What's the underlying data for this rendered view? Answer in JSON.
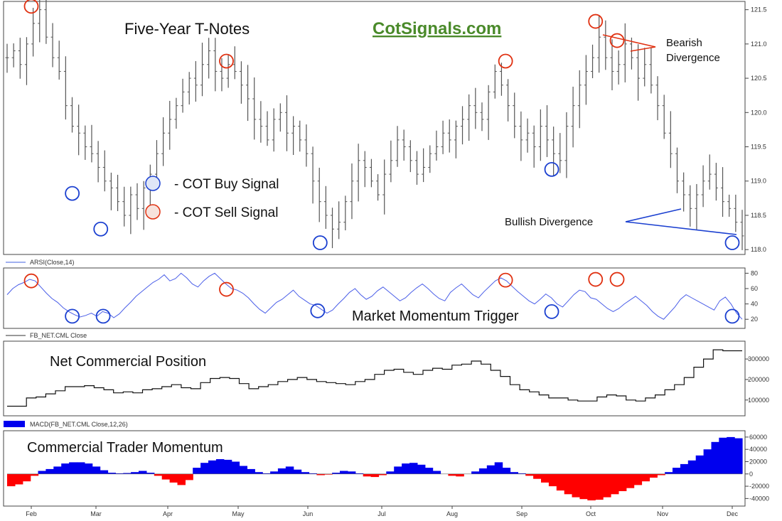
{
  "chart_data": [
    {
      "type": "ohlc",
      "title": "Five-Year T-Notes",
      "watermark": "CotSignals.com",
      "ylim": [
        117.95,
        121.6
      ],
      "y_ticks": [
        "121.5",
        "121.0",
        "120.5",
        "120.0",
        "119.5",
        "119.0",
        "118.5",
        "118.0"
      ],
      "legend": [
        {
          "label": "- COT Buy Signal",
          "color": "#1a3fd0",
          "fill": "#dfe6f7"
        },
        {
          "label": "- COT Sell Signal",
          "color": "#e03010",
          "fill": "#f7e2dc"
        }
      ],
      "annotations": [
        {
          "text": "Bearish",
          "color": "#e03010"
        },
        {
          "text": "Divergence",
          "color": "#e03010"
        },
        {
          "text": "Bullish Divergence",
          "color": "#1a3fd0"
        }
      ],
      "approx_close": [
        120.8,
        120.9,
        120.7,
        121.0,
        121.3,
        121.5,
        121.1,
        120.8,
        120.6,
        120.1,
        119.8,
        119.7,
        119.5,
        119.4,
        119.2,
        119.0,
        118.9,
        118.7,
        118.5,
        118.8,
        118.6,
        118.9,
        119.1,
        119.4,
        119.7,
        119.9,
        120.1,
        120.3,
        120.5,
        120.4,
        120.7,
        120.9,
        120.6,
        120.5,
        120.7,
        120.6,
        120.4,
        120.2,
        119.9,
        119.8,
        119.6,
        119.9,
        120.0,
        119.7,
        119.8,
        119.6,
        119.4,
        119.0,
        118.7,
        118.5,
        118.3,
        118.4,
        118.7,
        119.0,
        119.3,
        119.2,
        119.0,
        118.8,
        119.1,
        119.3,
        119.6,
        119.5,
        119.3,
        119.1,
        119.2,
        119.4,
        119.5,
        119.7,
        119.6,
        119.8,
        119.9,
        120.1,
        120.0,
        119.9,
        120.3,
        120.6,
        120.4,
        120.1,
        119.8,
        119.6,
        119.7,
        119.5,
        119.8,
        119.6,
        119.4,
        119.3,
        119.8,
        120.1,
        120.4,
        120.6,
        120.8,
        121.1,
        120.8,
        120.6,
        120.7,
        121.0,
        120.8,
        120.5,
        120.7,
        120.4,
        120.1,
        119.7,
        119.4,
        119.0,
        118.8,
        118.6,
        118.8,
        119.0,
        119.1,
        118.9,
        118.7,
        118.6,
        118.4,
        118.2
      ],
      "buy_signals": [
        {
          "date": "Feb 20",
          "price": 118.82
        },
        {
          "date": "Mar 3",
          "price": 118.3
        },
        {
          "date": "Jun 6",
          "price": 118.1
        },
        {
          "date": "Sep 14",
          "price": 119.17
        },
        {
          "date": "Dec 1",
          "price": 118.1
        }
      ],
      "sell_signals": [
        {
          "date": "Feb 1",
          "price": 121.55
        },
        {
          "date": "Apr 26",
          "price": 120.75
        },
        {
          "date": "Aug 24",
          "price": 120.75
        },
        {
          "date": "Oct 3",
          "price": 121.33
        },
        {
          "date": "Oct 12",
          "price": 121.05
        }
      ]
    },
    {
      "type": "line",
      "series_name": "ARSI(Close,14)",
      "title": "Market Momentum Trigger",
      "ylim": [
        10,
        85
      ],
      "y_ticks": [
        "80",
        "60",
        "40",
        "20"
      ],
      "values": [
        52,
        60,
        65,
        68,
        72,
        70,
        62,
        54,
        47,
        42,
        35,
        30,
        26,
        23,
        25,
        28,
        24,
        30,
        28,
        22,
        27,
        35,
        42,
        50,
        56,
        62,
        68,
        72,
        78,
        70,
        73,
        80,
        74,
        66,
        62,
        70,
        76,
        80,
        73,
        66,
        60,
        58,
        54,
        48,
        40,
        33,
        28,
        35,
        42,
        46,
        52,
        58,
        50,
        45,
        40,
        38,
        33,
        28,
        32,
        40,
        47,
        55,
        60,
        52,
        46,
        50,
        57,
        62,
        56,
        50,
        44,
        48,
        55,
        61,
        66,
        60,
        53,
        47,
        44,
        55,
        61,
        66,
        59,
        52,
        48,
        56,
        63,
        70,
        74,
        70,
        63,
        56,
        50,
        44,
        40,
        46,
        53,
        48,
        40,
        36,
        44,
        52,
        58,
        56,
        48,
        46,
        40,
        34,
        30,
        34,
        40,
        45,
        50,
        44,
        38,
        30,
        24,
        20,
        28,
        36,
        46,
        52,
        48,
        44,
        40,
        36,
        32,
        44,
        49,
        40,
        28,
        20
      ],
      "buy_signals": [
        {
          "date": "Feb 20",
          "value": 24
        },
        {
          "date": "Mar 4",
          "value": 24
        },
        {
          "date": "Jun 5",
          "value": 31
        },
        {
          "date": "Sep 14",
          "value": 30
        },
        {
          "date": "Dec 1",
          "value": 24
        }
      ],
      "sell_signals": [
        {
          "date": "Feb 1",
          "value": 70
        },
        {
          "date": "Apr 26",
          "value": 59
        },
        {
          "date": "Aug 24",
          "value": 71
        },
        {
          "date": "Oct 3",
          "value": 72
        },
        {
          "date": "Oct 12",
          "value": 72
        }
      ]
    },
    {
      "type": "step",
      "series_name": "FB_NET.CML Close",
      "title": "Net Commercial Position",
      "ylim": [
        30000,
        380000
      ],
      "y_ticks": [
        "300000",
        "200000",
        "100000"
      ],
      "values": [
        70000,
        70000,
        110000,
        115000,
        130000,
        145000,
        165000,
        165000,
        170000,
        160000,
        150000,
        135000,
        140000,
        135000,
        150000,
        155000,
        165000,
        175000,
        160000,
        155000,
        185000,
        205000,
        210000,
        205000,
        180000,
        155000,
        165000,
        175000,
        190000,
        200000,
        210000,
        200000,
        190000,
        185000,
        180000,
        175000,
        190000,
        200000,
        225000,
        245000,
        250000,
        235000,
        225000,
        245000,
        255000,
        250000,
        270000,
        275000,
        290000,
        275000,
        245000,
        215000,
        175000,
        150000,
        140000,
        125000,
        110000,
        110000,
        100000,
        95000,
        95000,
        115000,
        125000,
        120000,
        100000,
        95000,
        110000,
        125000,
        150000,
        175000,
        210000,
        260000,
        300000,
        345000,
        340000,
        340000
      ],
      "color": "#111111"
    },
    {
      "type": "area",
      "series_name": "MACD(FB_NET.CML Close,12,26)",
      "title": "Commercial Trader Momentum",
      "ylim": [
        -50000,
        68000
      ],
      "y_ticks": [
        "60000",
        "40000",
        "20000",
        "0",
        "-20000",
        "-40000"
      ],
      "positive_color": "#0000ee",
      "negative_color": "#ff0000",
      "values": [
        -20000,
        -17000,
        -12000,
        -3000,
        5000,
        8000,
        12000,
        17000,
        19000,
        19000,
        17000,
        12000,
        6000,
        2000,
        1000,
        1500,
        3000,
        5000,
        2000,
        -3000,
        -9000,
        -14000,
        -18000,
        -10000,
        10000,
        18000,
        22000,
        24000,
        23000,
        20000,
        13000,
        8000,
        3000,
        1000,
        4000,
        9000,
        12000,
        7000,
        3000,
        1000,
        -2000,
        -1000,
        2000,
        5000,
        4000,
        1000,
        -4000,
        -5000,
        -2000,
        4000,
        12000,
        17000,
        18000,
        15000,
        10000,
        5000,
        0,
        -3000,
        -4000,
        0,
        4000,
        9000,
        14000,
        19000,
        10000,
        3000,
        1000,
        -3000,
        -8000,
        -14000,
        -20000,
        -27000,
        -33000,
        -38000,
        -41000,
        -43000,
        -42000,
        -38000,
        -33000,
        -28000,
        -23000,
        -18000,
        -12000,
        -6000,
        -2000,
        3000,
        10000,
        16000,
        22000,
        30000,
        40000,
        52000,
        59000,
        60000,
        58000
      ]
    }
  ],
  "x_axis": {
    "labels": [
      "Feb",
      "Mar",
      "Apr",
      "May",
      "Jun",
      "Jul",
      "Aug",
      "Sep",
      "Oct",
      "Nov",
      "Dec"
    ]
  }
}
